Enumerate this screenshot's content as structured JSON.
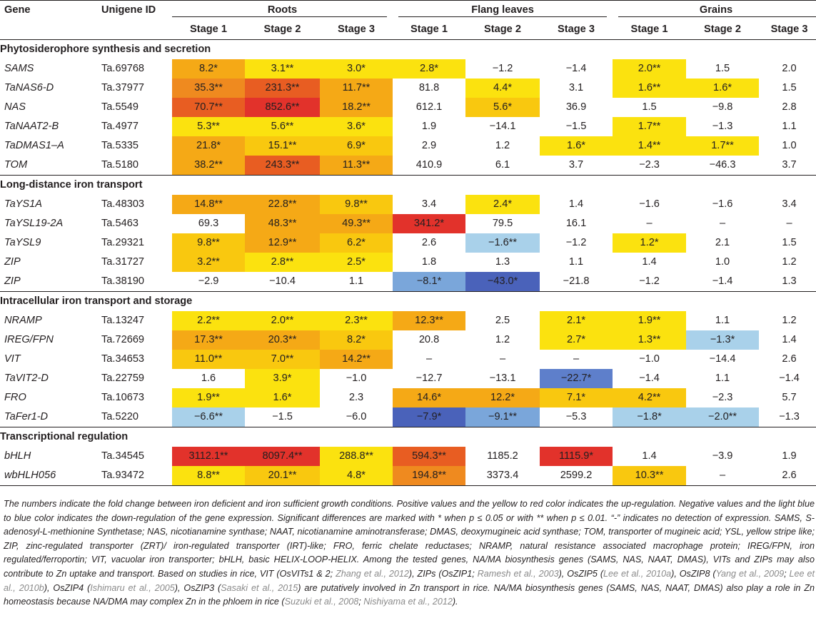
{
  "header": {
    "gene": "Gene",
    "unigene_id": "Unigene ID",
    "groups": [
      "Roots",
      "Flang leaves",
      "Grains"
    ],
    "stages": [
      "Stage 1",
      "Stage 2",
      "Stage 3",
      "Stage 1",
      "Stage 2",
      "Stage 3",
      "Stage 1",
      "Stage 2",
      "Stage 3"
    ]
  },
  "sections": [
    {
      "title": "Phytosiderophore synthesis and secretion",
      "rows": [
        {
          "gene": "SAMS",
          "id": "Ta.69768",
          "values": [
            "8.2*",
            "3.1**",
            "3.0*",
            "2.8*",
            "−1.2",
            "−1.4",
            "2.0**",
            "1.5",
            "2.0"
          ]
        },
        {
          "gene": "TaNAS6-D",
          "id": "Ta.37977",
          "values": [
            "35.3**",
            "231.3**",
            "11.7**",
            "81.8",
            "4.4*",
            "3.1",
            "1.6**",
            "1.6*",
            "1.5"
          ]
        },
        {
          "gene": "NAS",
          "id": "Ta.5549",
          "values": [
            "70.7**",
            "852.6**",
            "18.2**",
            "612.1",
            "5.6*",
            "36.9",
            "1.5",
            "−9.8",
            "2.8"
          ]
        },
        {
          "gene": "TaNAAT2-B",
          "id": "Ta.4977",
          "values": [
            "5.3**",
            "5.6**",
            "3.6*",
            "1.9",
            "−14.1",
            "−1.5",
            "1.7**",
            "−1.3",
            "1.1"
          ]
        },
        {
          "gene": "TaDMAS1–A",
          "id": "Ta.5335",
          "values": [
            "21.8*",
            "15.1**",
            "6.9*",
            "2.9",
            "1.2",
            "1.6*",
            "1.4**",
            "1.7**",
            "1.0"
          ]
        },
        {
          "gene": "TOM",
          "id": "Ta.5180",
          "values": [
            "38.2**",
            "243.3**",
            "11.3**",
            "410.9",
            "6.1",
            "3.7",
            "−2.3",
            "−46.3",
            "3.7"
          ]
        }
      ]
    },
    {
      "title": "Long-distance iron transport",
      "rows": [
        {
          "gene": "TaYS1A",
          "id": "Ta.48303",
          "values": [
            "14.8**",
            "22.8**",
            "9.8**",
            "3.4",
            "2.4*",
            "1.4",
            "−1.6",
            "−1.6",
            "3.4"
          ]
        },
        {
          "gene": "TaYSL19-2A",
          "id": "Ta.5463",
          "values": [
            "69.3",
            "48.3**",
            "49.3**",
            "341.2*",
            "79.5",
            "16.1",
            "–",
            "–",
            "–"
          ]
        },
        {
          "gene": "TaYSL9",
          "id": "Ta.29321",
          "values": [
            "9.8**",
            "12.9**",
            "6.2*",
            "2.6",
            "−1.6**",
            "−1.2",
            "1.2*",
            "2.1",
            "1.5"
          ]
        },
        {
          "gene": "ZIP",
          "id": "Ta.31727",
          "values": [
            "3.2**",
            "2.8**",
            "2.5*",
            "1.8",
            "1.3",
            "1.1",
            "1.4",
            "1.0",
            "1.2"
          ]
        },
        {
          "gene": "ZIP",
          "id": "Ta.38190",
          "values": [
            "−2.9",
            "−10.4",
            "1.1",
            "−8.1*",
            "−43.0*",
            "−21.8",
            "−1.2",
            "−1.4",
            "1.3"
          ]
        }
      ]
    },
    {
      "title": "Intracellular iron transport and storage",
      "rows": [
        {
          "gene": "NRAMP",
          "id": "Ta.13247",
          "values": [
            "2.2**",
            "2.0**",
            "2.3**",
            "12.3**",
            "2.5",
            "2.1*",
            "1.9**",
            "1.1",
            "1.2"
          ]
        },
        {
          "gene": "IREG/FPN",
          "id": "Ta.72669",
          "values": [
            "17.3**",
            "20.3**",
            "8.2*",
            "20.8",
            "1.2",
            "2.7*",
            "1.3**",
            "−1.3*",
            "1.4"
          ]
        },
        {
          "gene": "VIT",
          "id": "Ta.34653",
          "values": [
            "11.0**",
            "7.0**",
            "14.2**",
            "–",
            "–",
            "–",
            "−1.0",
            "−14.4",
            "2.6"
          ]
        },
        {
          "gene": "TaVIT2-D",
          "id": "Ta.22759",
          "values": [
            "1.6",
            "3.9*",
            "−1.0",
            "−12.7",
            "−13.1",
            "−22.7*",
            "−1.4",
            "1.1",
            "−1.4"
          ]
        },
        {
          "gene": "FRO",
          "id": "Ta.10673",
          "values": [
            "1.9**",
            "1.6*",
            "2.3",
            "14.6*",
            "12.2*",
            "7.1*",
            "4.2**",
            "−2.3",
            "5.7"
          ]
        },
        {
          "gene": "TaFer1-D",
          "id": "Ta.5220",
          "values": [
            "−6.6**",
            "−1.5",
            "−6.0",
            "−7.9*",
            "−9.1**",
            "−5.3",
            "−1.8*",
            "−2.0**",
            "−1.3"
          ]
        }
      ]
    },
    {
      "title": "Transcriptional regulation",
      "rows": [
        {
          "gene": "bHLH",
          "id": "Ta.34545",
          "values": [
            "3112.1**",
            "8097.4**",
            "288.8**",
            "594.3**",
            "1185.2",
            "1115.9*",
            "1.4",
            "−3.9",
            "1.9"
          ]
        },
        {
          "gene": "wbHLH056",
          "id": "Ta.93472",
          "values": [
            "8.8**",
            "20.1**",
            "4.8*",
            "194.8**",
            "3373.4",
            "2599.2",
            "10.3**",
            "–",
            "2.6"
          ]
        }
      ]
    }
  ],
  "colors": {
    "up_1": "#fbe20f",
    "up_2": "#f9c80f",
    "up_3": "#f5a916",
    "up_4": "#ef8a1f",
    "up_5": "#e85d22",
    "up_6": "#e2322b",
    "down_1": "#a9d1ea",
    "down_2": "#7aa6da",
    "down_3": "#5e7fcb",
    "down_4": "#4a62ba"
  },
  "footnote": {
    "t1": "The numbers indicate the fold change between iron deficient and iron sufficient growth conditions. Positive values and the yellow to red color indicates the up-regulation. Negative values and the light blue to blue color indicates the down-regulation of the gene expression. Significant differences are marked with * when p ≤ 0.05 or with ** when p ≤ 0.01. “-” indicates no detection of expression. SAMS, S-adenosyl-L-methionine Synthetase; NAS, nicotianamine synthase; NAAT, nicotianamine aminotransferase; DMAS, deoxymugineic acid synthase; TOM, transporter of mugineic acid; YSL, yellow stripe like; ZIP, zinc-regulated transporter (ZRT)/ iron-regulated transporter (IRT)-like; FRO, ferric chelate reductases; NRAMP, natural resistance associated macrophage protein; IREG/FPN, iron regulated/ferroportin; VIT, vacuolar iron transporter; bHLH, basic HELIX-LOOP-HELIX. Among the tested genes, NA/MA biosynthesis genes (SAMS, NAS, NAAT, DMAS), VITs and ZIPs may also contribute to Zn uptake and transport. Based on studies in rice, VIT (OsVITs1 & 2; ",
    "c1": "Zhang et al., 2012",
    "t2": "), ZIPs (OsZIP1; ",
    "c2": "Ramesh et al., 2003",
    "t3": "), OsZIP5 (",
    "c3": "Lee et al., 2010a",
    "t4": "), OsZIP8 (",
    "c4": "Yang et al., 2009",
    "t5": "; ",
    "c5": "Lee et al., 2010b",
    "t6": "), OsZIP4 (",
    "c6": "Ishimaru et al., 2005",
    "t7": "), OsZIP3 (",
    "c7": "Sasaki et al., 2015",
    "t8": ") are putatively involved in Zn transport in rice. NA/MA biosynthesis genes (SAMS, NAS, NAAT, DMAS) also play a role in Zn homeostasis because NA/DMA may complex Zn in the phloem in rice (",
    "c8": "Suzuki et al., 2008",
    "t9": "; ",
    "c9": "Nishiyama et al., 2012",
    "t10": ")."
  }
}
